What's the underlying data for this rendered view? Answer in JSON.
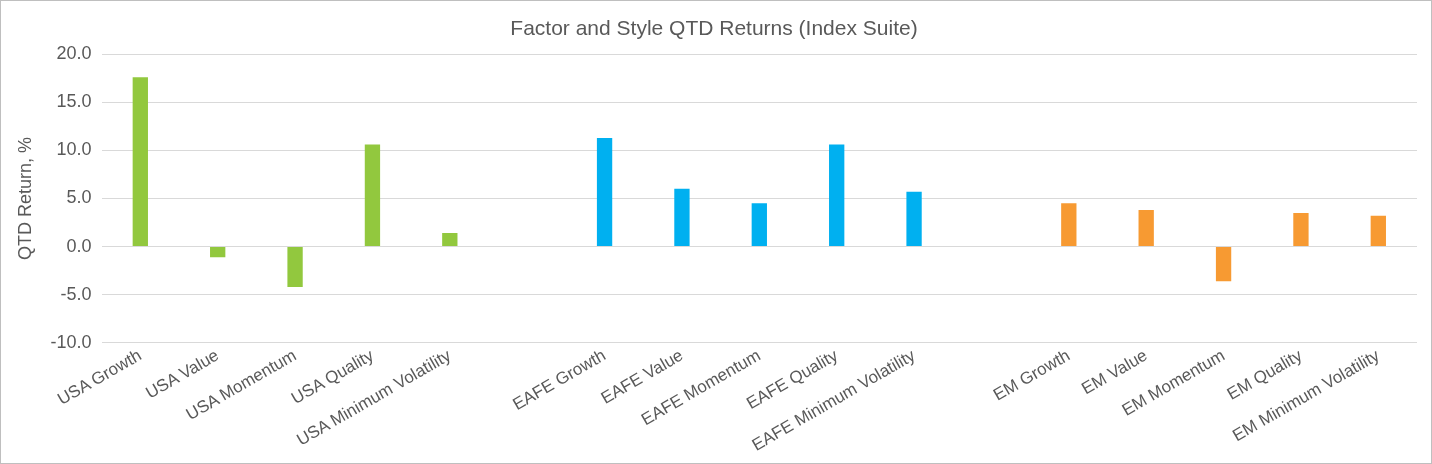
{
  "chart_data": {
    "type": "bar",
    "title": "Factor and Style QTD Returns (Index Suite)",
    "ylabel": "QTD Return, %",
    "categories": [
      "USA Growth",
      "USA Value",
      "USA Momentum",
      "USA Quality",
      "USA Minimum Volatility",
      null,
      "EAFE Growth",
      "EAFE Value",
      "EAFE Momentum",
      "EAFE Quality",
      "EAFE Minimum Volatility",
      null,
      "EM Growth",
      "EM Value",
      "EM Momentum",
      "EM Quality",
      "EM Minimum Volatility"
    ],
    "values": [
      17.6,
      -1.1,
      -4.2,
      10.6,
      1.4,
      null,
      11.3,
      6.0,
      4.5,
      10.6,
      5.7,
      null,
      4.5,
      3.8,
      -3.6,
      3.5,
      3.2
    ],
    "colors": [
      "#92c83e",
      "#92c83e",
      "#92c83e",
      "#92c83e",
      "#92c83e",
      "#92c83e",
      "#00b0f0",
      "#00b0f0",
      "#00b0f0",
      "#00b0f0",
      "#00b0f0",
      "#00b0f0",
      "#f79a32",
      "#f79a32",
      "#f79a32",
      "#f79a32",
      "#f79a32"
    ],
    "ylim": [
      -10,
      20
    ],
    "yticks": [
      {
        "value": -10,
        "label": "-10.0"
      },
      {
        "value": -5,
        "label": "-5.0"
      },
      {
        "value": 0,
        "label": "0.0"
      },
      {
        "value": 5,
        "label": "5.0"
      },
      {
        "value": 10,
        "label": "10.0"
      },
      {
        "value": 15,
        "label": "15.0"
      },
      {
        "value": 20,
        "label": "20.0"
      }
    ],
    "grid": "y",
    "legend": false
  }
}
